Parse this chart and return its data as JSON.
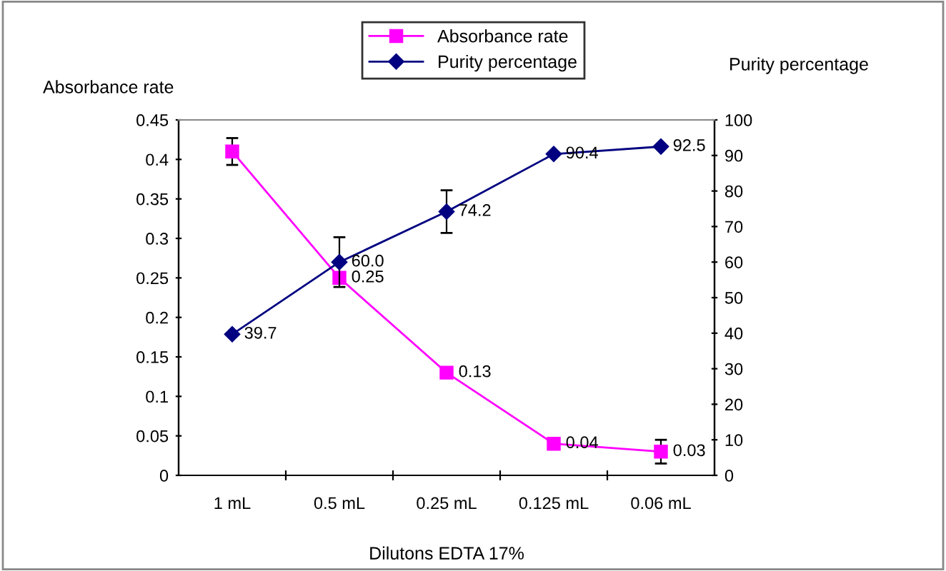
{
  "chart_data": {
    "type": "line",
    "xlabel": "Dilutons EDTA 17%",
    "ylabel": "Absorbance rate",
    "y2label": "Purity percentage",
    "categories": [
      "1 mL",
      "0.5 mL",
      "0.25 mL",
      "0.125 mL",
      "0.06 mL"
    ],
    "series": [
      {
        "name": "Absorbance rate",
        "color": "#ff00ff",
        "marker": "square",
        "values": [
          0.41,
          0.25,
          0.13,
          0.04,
          0.03
        ],
        "value_labels": [
          null,
          "0.25",
          "0.13",
          "0.04",
          "0.03"
        ],
        "errors": [
          0.017,
          null,
          null,
          null,
          0.015
        ]
      },
      {
        "name": "Purity percentage",
        "color": "#000080",
        "marker": "diamond",
        "axis": "y2",
        "values": [
          39.7,
          60.0,
          74.2,
          90.4,
          92.5
        ],
        "value_labels": [
          "39.7",
          "60.0",
          "74.2",
          "90.4",
          "92.5"
        ],
        "errors": [
          null,
          7,
          6,
          null,
          null
        ]
      }
    ],
    "ylim": [
      0,
      0.45
    ],
    "yticks": [
      0,
      0.05,
      0.1,
      0.15,
      0.2,
      0.25,
      0.3,
      0.35,
      0.4,
      0.45
    ],
    "y2lim": [
      0,
      100
    ],
    "y2ticks": [
      0,
      10,
      20,
      30,
      40,
      50,
      60,
      70,
      80,
      90,
      100
    ],
    "grid": false,
    "legend": "top"
  }
}
